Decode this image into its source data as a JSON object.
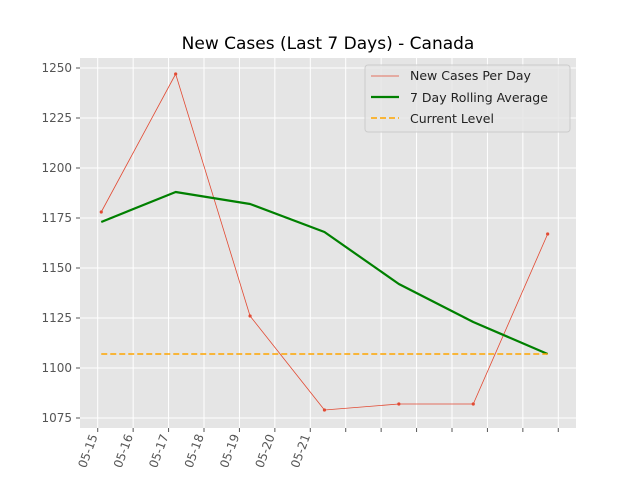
{
  "chart_data": {
    "type": "line",
    "title": "New Cases (Last 7 Days) - Canada",
    "xlabel": "",
    "ylabel": "",
    "ylim": [
      1070,
      1255
    ],
    "yticks": [
      1075,
      1100,
      1125,
      1150,
      1175,
      1200,
      1225,
      1250
    ],
    "xticks": [
      "05-15",
      "05-16",
      "05-17",
      "05-18",
      "05-19",
      "05-20",
      "05-21",
      "",
      "",
      "",
      "",
      "",
      "",
      ""
    ],
    "grid": true,
    "legend_position": "upper-right",
    "series": [
      {
        "name": "New Cases Per Day",
        "color": "#e24a33",
        "style": "thin-line-markers",
        "x": [
          0.6,
          2.7,
          4.8,
          6.9,
          9.0,
          11.1,
          13.2
        ],
        "values": [
          1178,
          1247,
          1126,
          1079,
          1082,
          1082,
          1167
        ]
      },
      {
        "name": "7 Day Rolling Average",
        "color": "#008000",
        "style": "thick-line",
        "x": [
          0.6,
          2.7,
          4.8,
          6.9,
          9.0,
          11.1,
          13.2
        ],
        "values": [
          1173,
          1188,
          1182,
          1168,
          1142,
          1123,
          1107
        ]
      },
      {
        "name": "Current Level",
        "color": "#ffa500",
        "style": "dashed",
        "x": [
          0.6,
          13.2
        ],
        "values": [
          1107,
          1107
        ]
      }
    ]
  }
}
